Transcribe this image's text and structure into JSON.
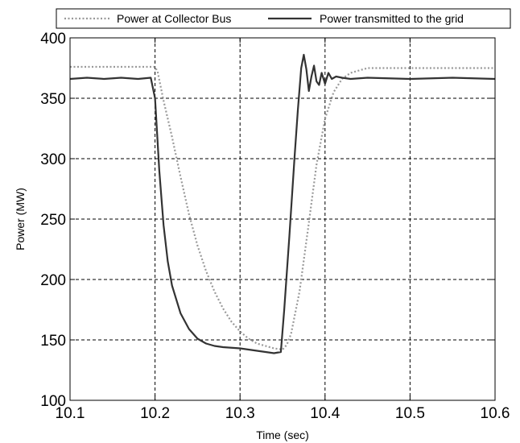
{
  "chart_data": {
    "type": "line",
    "title": "",
    "xlabel": "Time (sec)",
    "ylabel": "Power (MW)",
    "xlim": [
      10.1,
      10.6
    ],
    "ylim": [
      100,
      400
    ],
    "xticks": [
      10.1,
      10.2,
      10.3,
      10.4,
      10.5,
      10.6
    ],
    "yticks": [
      100,
      150,
      200,
      250,
      300,
      350,
      400
    ],
    "xtick_labels": [
      "10.1",
      "10.2",
      "10.3",
      "10.4",
      "10.5",
      "10.6"
    ],
    "ytick_labels": [
      "100",
      "150",
      "200",
      "250",
      "300",
      "350",
      "400"
    ],
    "grid": true,
    "legend_position": "top",
    "series": [
      {
        "name": "Power at Collector Bus",
        "style": "dotted",
        "color": "#999999",
        "x": [
          10.1,
          10.2,
          10.203,
          10.21,
          10.22,
          10.23,
          10.24,
          10.25,
          10.26,
          10.27,
          10.28,
          10.29,
          10.3,
          10.31,
          10.32,
          10.33,
          10.34,
          10.35,
          10.355,
          10.36,
          10.37,
          10.38,
          10.39,
          10.4,
          10.41,
          10.42,
          10.43,
          10.44,
          10.45,
          10.5,
          10.6
        ],
        "y": [
          376,
          376,
          372,
          348,
          318,
          285,
          254,
          228,
          207,
          190,
          176,
          165,
          157,
          151,
          147,
          145,
          143,
          142,
          146,
          155,
          190,
          242,
          295,
          333,
          355,
          366,
          371,
          373,
          375,
          375,
          375
        ]
      },
      {
        "name": "Power transmitted to the grid",
        "style": "solid",
        "color": "#333333",
        "x": [
          10.1,
          10.12,
          10.14,
          10.16,
          10.18,
          10.195,
          10.2,
          10.205,
          10.21,
          10.215,
          10.22,
          10.23,
          10.24,
          10.25,
          10.26,
          10.27,
          10.28,
          10.3,
          10.32,
          10.34,
          10.348,
          10.352,
          10.358,
          10.364,
          10.368,
          10.372,
          10.375,
          10.378,
          10.381,
          10.384,
          10.387,
          10.39,
          10.393,
          10.396,
          10.4,
          10.404,
          10.408,
          10.413,
          10.42,
          10.43,
          10.45,
          10.5,
          10.55,
          10.6
        ],
        "y": [
          366,
          367,
          366,
          367,
          366,
          367,
          350,
          290,
          245,
          215,
          195,
          172,
          159,
          151,
          147,
          145,
          144,
          143,
          141,
          139,
          140,
          175,
          235,
          300,
          340,
          375,
          386,
          374,
          356,
          368,
          377,
          364,
          361,
          371,
          362,
          371,
          366,
          368,
          367,
          366,
          367,
          366,
          367,
          366
        ]
      }
    ]
  }
}
